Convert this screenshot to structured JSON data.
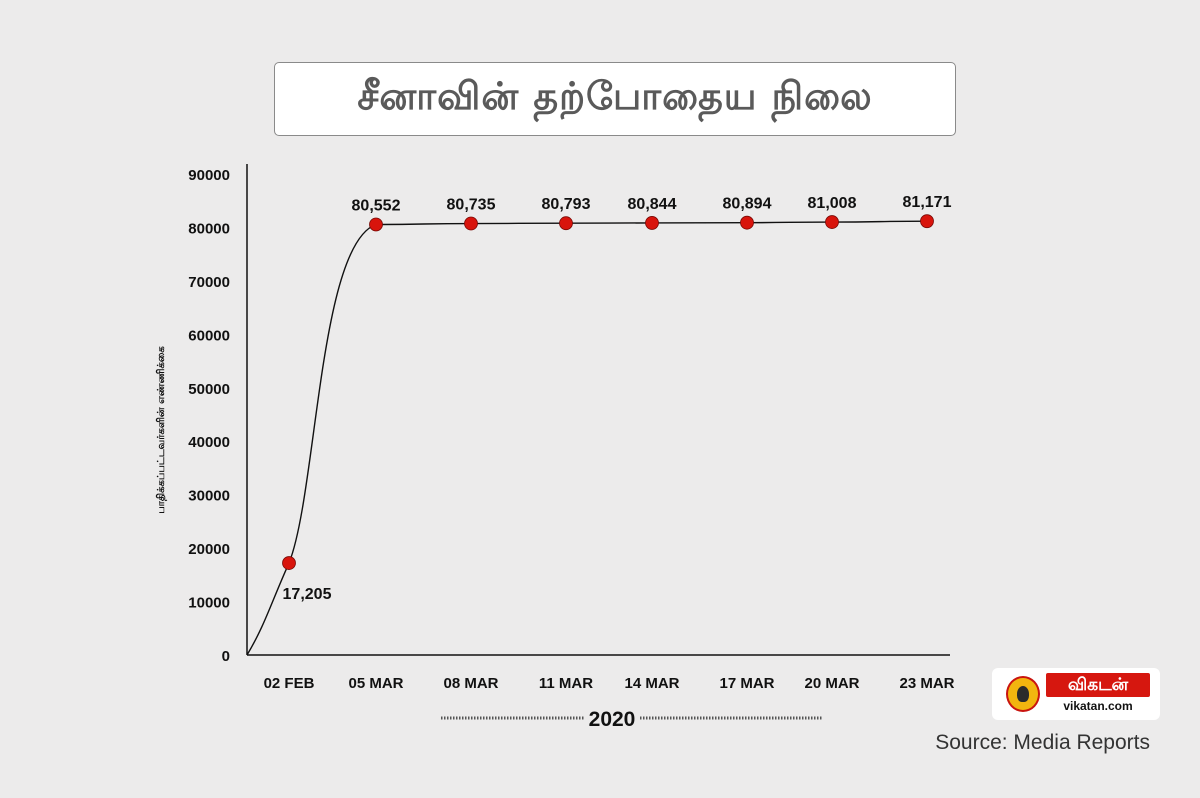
{
  "chart_data": {
    "type": "line",
    "title": "சீனாவின் தற்போதைய நிலை",
    "ylabel": "பாதிக்கப்பட்டவர்களின் எண்ணிக்கை",
    "xlabel": "2020",
    "categories": [
      "02 FEB",
      "05 MAR",
      "08 MAR",
      "11 MAR",
      "14 MAR",
      "17 MAR",
      "20 MAR",
      "23 MAR"
    ],
    "values": [
      17205,
      80552,
      80735,
      80793,
      80844,
      80894,
      81008,
      81171
    ],
    "value_labels": [
      "17,205",
      "80,552",
      "80,735",
      "80,793",
      "80,844",
      "80,894",
      "81,008",
      "81,171"
    ],
    "yticks": [
      "0",
      "10000",
      "20000",
      "30000",
      "40000",
      "50000",
      "60000",
      "70000",
      "80000",
      "90000"
    ],
    "ylim": [
      0,
      90000
    ],
    "grid": false,
    "marker_color": "#d8140c",
    "line_color": "#111111"
  },
  "logo": {
    "name": "விகடன்",
    "url": "vikatan.com"
  },
  "source": "Source: Media Reports"
}
